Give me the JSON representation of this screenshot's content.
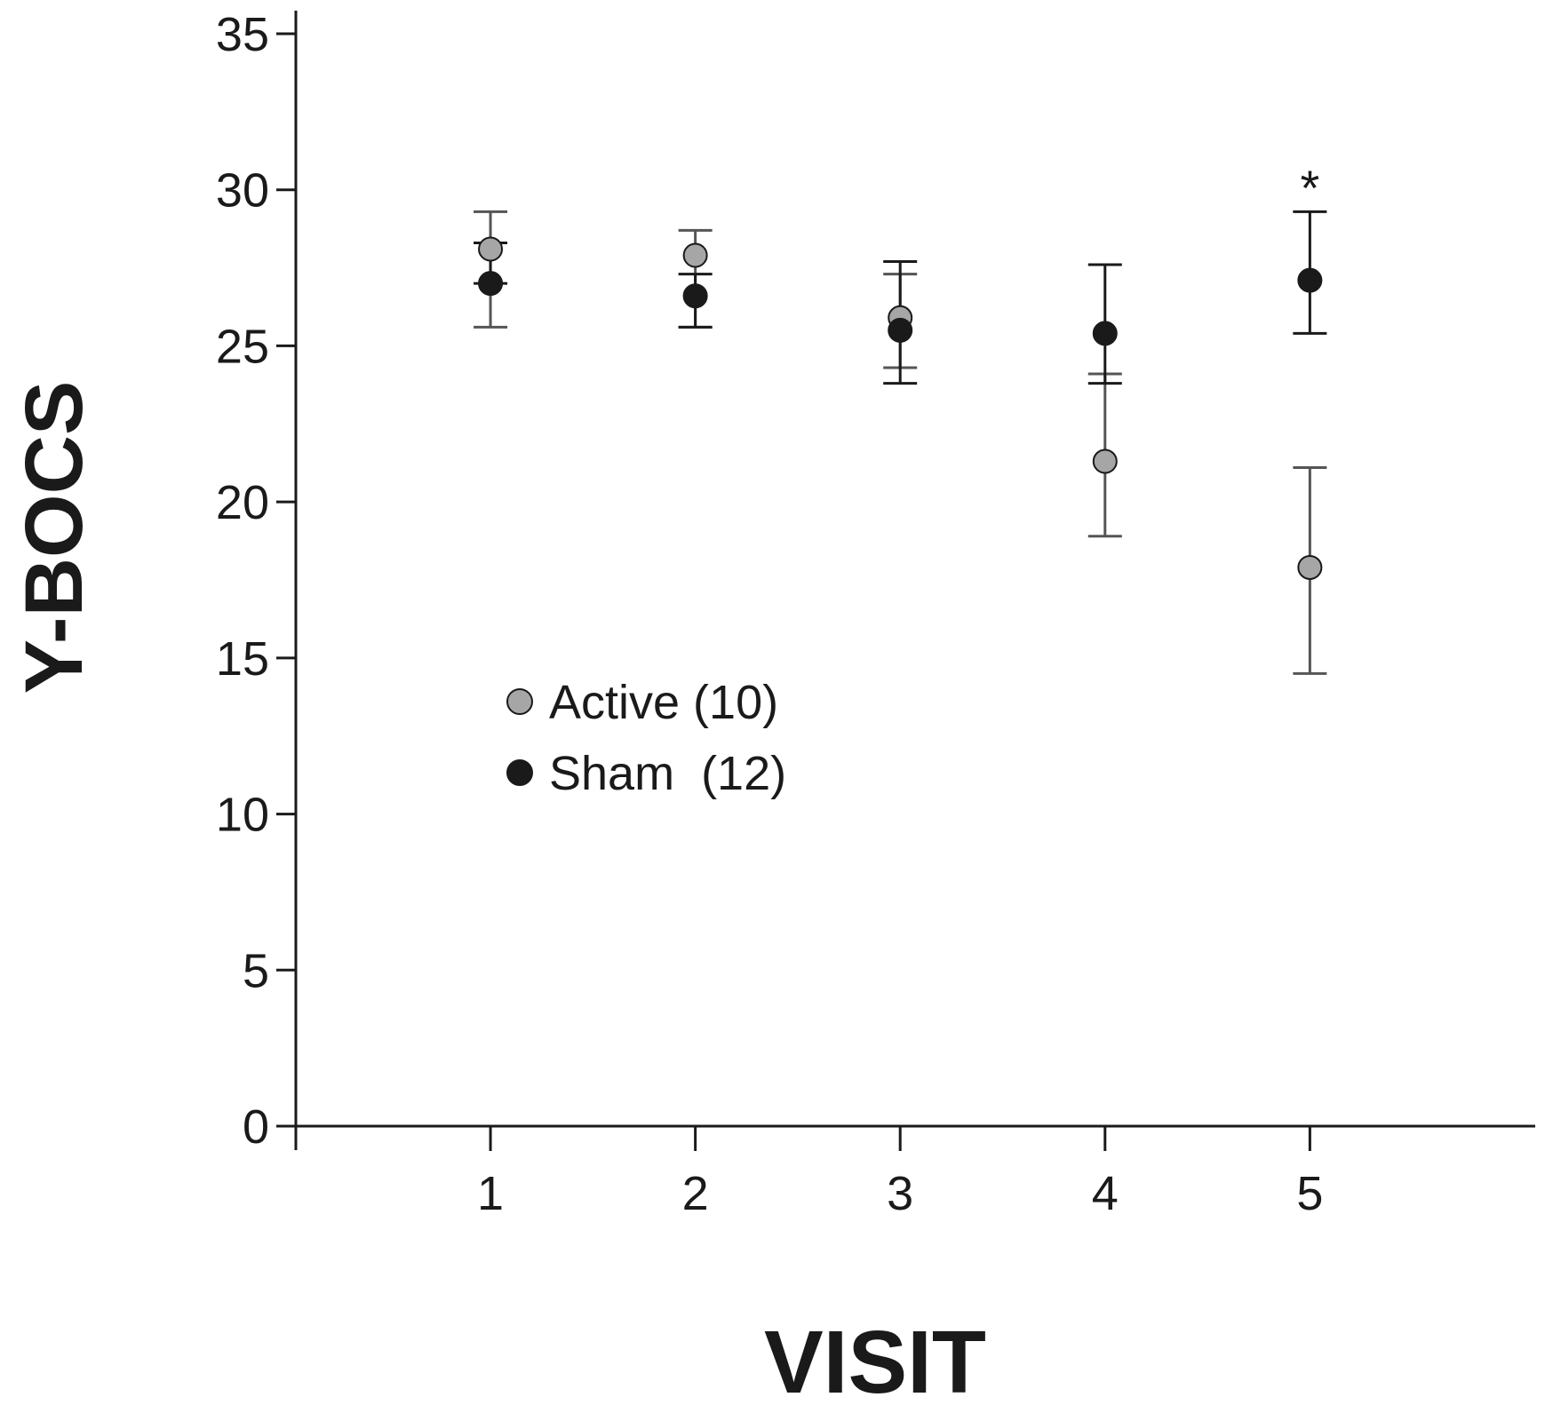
{
  "chart_data": {
    "type": "scatter",
    "title": "",
    "xlabel": "VISIT",
    "ylabel": "Y-BOCS",
    "x": [
      1,
      2,
      3,
      4,
      5
    ],
    "x_ticks": [
      "1",
      "2",
      "3",
      "4",
      "5"
    ],
    "y_ticks": [
      0,
      5,
      10,
      15,
      20,
      25,
      30,
      35
    ],
    "ylim": [
      0,
      35
    ],
    "xlim": [
      0.05,
      6.1
    ],
    "grid": false,
    "legend_position": "center-left",
    "series": [
      {
        "name": "Active (10)",
        "color": "#a6a6a6",
        "values": [
          28.1,
          27.9,
          25.9,
          21.3,
          17.9
        ],
        "error_low": [
          25.6,
          25.6,
          24.3,
          18.9,
          14.5
        ],
        "error_high": [
          29.3,
          28.7,
          27.3,
          24.1,
          21.1
        ],
        "error_color": "#555555"
      },
      {
        "name": "Sham  (12)",
        "color": "#1a1a1a",
        "values": [
          27.0,
          26.6,
          25.5,
          25.4,
          27.1
        ],
        "error_low": [
          27.0,
          25.6,
          23.8,
          23.8,
          25.4
        ],
        "error_high": [
          28.3,
          27.3,
          27.7,
          27.6,
          29.3
        ],
        "error_color": "#1a1a1a"
      }
    ],
    "annotations": [
      {
        "text": "*",
        "x": 5,
        "y": 30.3
      }
    ]
  }
}
